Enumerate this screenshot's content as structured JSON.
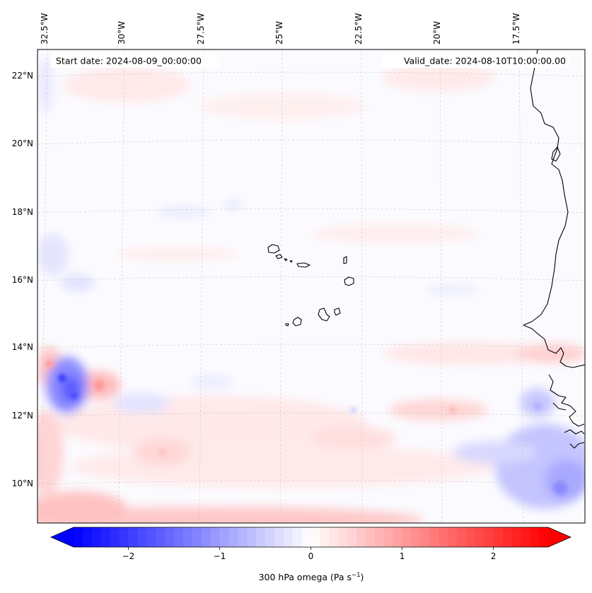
{
  "header": {
    "start_date": "Start date: 2024-08-09_00:00:00",
    "valid_date": "Valid_date: 2024-08-10T10:00:00.00"
  },
  "map": {
    "lon_labels": [
      "32.5°W",
      "30°W",
      "27.5°W",
      "25°W",
      "22.5°W",
      "20°W",
      "17.5°W"
    ],
    "lat_labels": [
      "22°N",
      "20°N",
      "18°N",
      "16°N",
      "14°N",
      "12°N",
      "10°N"
    ],
    "gridlines": true,
    "gridline_style": "dashed"
  },
  "colorbar": {
    "label_main": "300 hPa omega (Pa s",
    "label_exp": "−1",
    "label_close": ")",
    "ticks": [
      "−2",
      "−1",
      "0",
      "1",
      "2"
    ],
    "tick_values": [
      -2,
      -1,
      0,
      1,
      2
    ],
    "range": [
      -2.6,
      2.6
    ],
    "extend": "both",
    "colormap": "bwr",
    "colors": {
      "min": "#0000ff",
      "mid": "#ffffff",
      "max": "#ff0000"
    }
  }
}
